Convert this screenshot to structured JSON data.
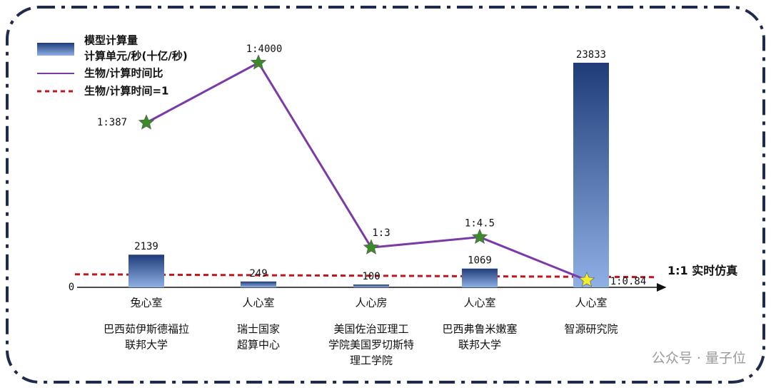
{
  "chart_data": {
    "type": "bar_line",
    "categories": [
      "兔心室",
      "人心室",
      "人心房",
      "人心室",
      "人心室"
    ],
    "institutions": [
      [
        "巴西茹伊斯德福拉",
        "联邦大学"
      ],
      [
        "瑞士国家",
        "超算中心"
      ],
      [
        "美国佐治亚理工",
        "学院美国罗切斯特",
        "理工学院"
      ],
      [
        "巴西弗鲁米嫩塞",
        "联邦大学"
      ],
      [
        "智源研究院"
      ]
    ],
    "series": [
      {
        "name": "模型计算量",
        "name_line2": "计算单元/秒(十亿/秒)",
        "type": "bar",
        "color_top": "#1f3c78",
        "color_bottom": "#8fb0e6",
        "values": [
          2139,
          249,
          100,
          1069,
          23833
        ]
      },
      {
        "name": "生物/计算时间比",
        "type": "line",
        "color": "#7a3aa8",
        "marker_colors": [
          "#3d8a2a",
          "#3d8a2a",
          "#3d8a2a",
          "#3d8a2a",
          "#f2ee2a"
        ],
        "values": [
          387,
          4000,
          3,
          4.5,
          0.84
        ],
        "value_labels": [
          "1:387",
          "1:4000",
          "1:3",
          "1:4.5",
          "1:0.84"
        ]
      }
    ],
    "reference": {
      "value": 1,
      "name": "生物/计算时间=1",
      "label": "1:1 实时仿真",
      "color": "#c0161c"
    },
    "zero_label": "0",
    "watermark": "公众号 · 量子位"
  }
}
